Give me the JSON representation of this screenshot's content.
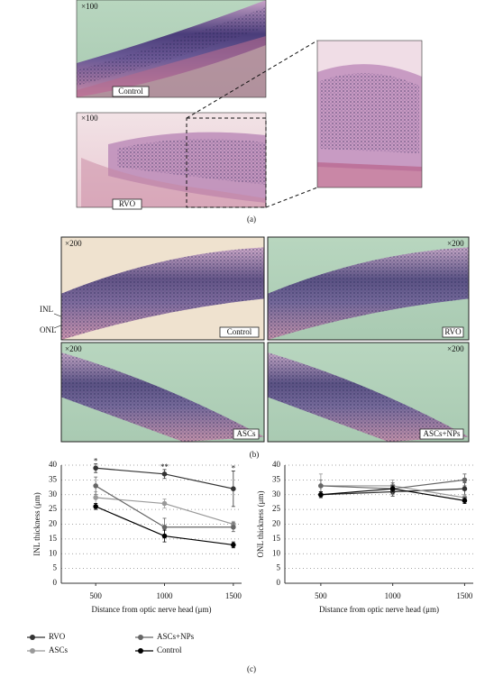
{
  "panel_a": {
    "control_mag": "×100",
    "control_label": "Control",
    "rvo_mag": "×100",
    "rvo_label": "RVO",
    "caption": "(a)"
  },
  "panel_b": {
    "images": [
      {
        "mag": "×200",
        "label": "Control"
      },
      {
        "mag": "×200",
        "label": "RVO"
      },
      {
        "mag": "×200",
        "label": "ASCs"
      },
      {
        "mag": "×200",
        "label": "ASCs+NPs"
      }
    ],
    "inl_label": "INL",
    "onl_label": "ONL",
    "caption": "(b)"
  },
  "chart_data": [
    {
      "type": "line",
      "ylabel": "INL thickness (μm)",
      "xlabel": "Distance from optic nerve head (μm)",
      "x": [
        500,
        1000,
        1500
      ],
      "xlim": [
        250,
        1560
      ],
      "xticks": [
        500,
        1000,
        1500
      ],
      "ylim": [
        0,
        40
      ],
      "yticks": [
        0,
        5,
        10,
        15,
        20,
        25,
        30,
        35,
        40
      ],
      "grid": true,
      "series": [
        {
          "name": "RVO",
          "color": "#333333",
          "values": [
            39,
            37,
            32
          ],
          "errors": [
            1.5,
            1.5,
            6
          ]
        },
        {
          "name": "ASCs",
          "color": "#999999",
          "values": [
            29,
            27,
            20
          ],
          "errors": [
            2,
            1.5,
            1
          ]
        },
        {
          "name": "ASCs+NPs",
          "color": "#666666",
          "values": [
            33,
            19,
            19
          ],
          "errors": [
            3,
            3,
            1.5
          ]
        },
        {
          "name": "Control",
          "color": "#000000",
          "values": [
            26,
            16,
            13
          ],
          "errors": [
            1,
            2,
            1
          ]
        }
      ],
      "annotations": [
        {
          "x": 500,
          "text": "*"
        },
        {
          "x": 1000,
          "text": "**"
        },
        {
          "x": 1500,
          "text": "*"
        }
      ]
    },
    {
      "type": "line",
      "ylabel": "ONL thickness (μm)",
      "xlabel": "Distance from optic nerve head (μm)",
      "x": [
        500,
        1000,
        1500
      ],
      "xlim": [
        250,
        1560
      ],
      "xticks": [
        500,
        1000,
        1500
      ],
      "ylim": [
        0,
        40
      ],
      "yticks": [
        0,
        5,
        10,
        15,
        20,
        25,
        30,
        35,
        40
      ],
      "grid": true,
      "series": [
        {
          "color": "#333333",
          "values": [
            30,
            31,
            32
          ],
          "errors": [
            1,
            1.5,
            2
          ]
        },
        {
          "color": "#999999",
          "values": [
            33,
            33,
            29
          ],
          "errors": [
            4,
            2,
            1
          ]
        },
        {
          "color": "#666666",
          "values": [
            33,
            32,
            35
          ],
          "errors": [
            2,
            2,
            2
          ]
        },
        {
          "color": "#000000",
          "values": [
            30,
            32,
            28
          ],
          "errors": [
            1,
            1,
            1
          ]
        }
      ]
    }
  ],
  "caption_c": "(c)"
}
